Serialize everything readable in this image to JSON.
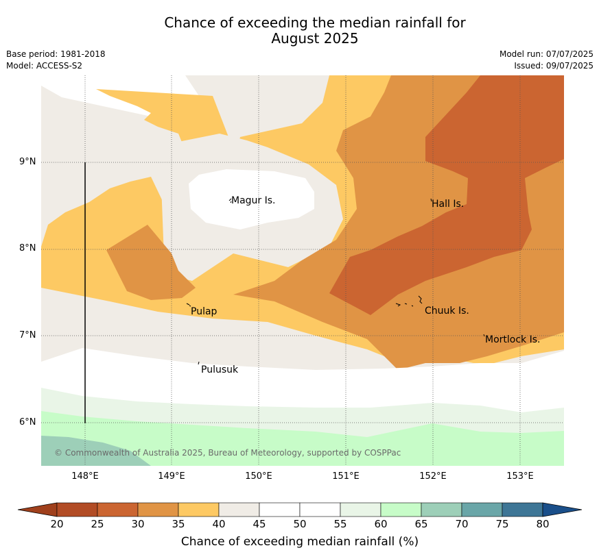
{
  "header": {
    "title_line1": "Chance of exceeding the median rainfall for",
    "title_line2": "August 2025",
    "base_period": "Base period: 1981-2018",
    "model": "Model: ACCESS-S2",
    "model_run": "Model run: 07/07/2025",
    "issued": "Issued: 09/07/2025"
  },
  "map": {
    "lat_ticks": [
      "9°N",
      "8°N",
      "7°N",
      "6°N"
    ],
    "lon_ticks": [
      "148°E",
      "149°E",
      "150°E",
      "151°E",
      "152°E",
      "153°E"
    ],
    "places": [
      "Magur Is.",
      "Hall Is.",
      "Pulap",
      "Chuuk Is.",
      "Mortlock Is.",
      "Pulusuk"
    ],
    "copyright": "© Commonwealth of Australia 2025, Bureau of Meteorology, supported by COSPPac",
    "extent": {
      "lon": [
        147.5,
        153.5
      ],
      "lat": [
        5.5,
        10.0
      ]
    }
  },
  "colorbar": {
    "label": "Chance of exceeding median rainfall (%)",
    "ticks": [
      "20",
      "25",
      "30",
      "35",
      "40",
      "45",
      "50",
      "55",
      "60",
      "65",
      "70",
      "75",
      "80"
    ],
    "colors": [
      "#a0401c",
      "#b24c25",
      "#cb6531",
      "#e09445",
      "#fdc963",
      "#f0ece6",
      "#ffffff",
      "#ffffff",
      "#e9f5e7",
      "#c7fcc8",
      "#9dcfb8",
      "#6aa6a8",
      "#3e7696",
      "#1a4f8a"
    ]
  }
}
